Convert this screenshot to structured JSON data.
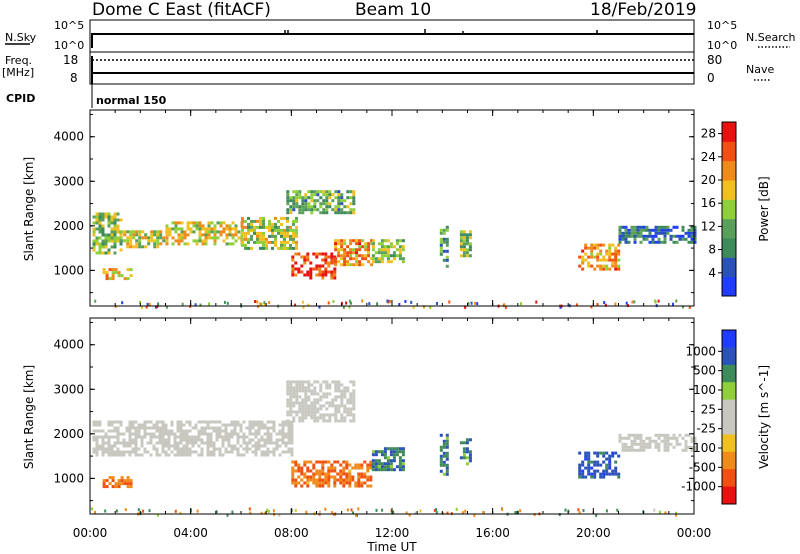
{
  "header": {
    "title": "Dome C East (fitACF)",
    "beam": "Beam 10",
    "date": "18/Feb/2019"
  },
  "status_panels": {
    "nsky_label": "N.Sky",
    "nsearch_label": "N.Search",
    "freq_label_1": "Freq.",
    "freq_label_2": "[MHz]",
    "nave_label": "Nave",
    "cpid_label": "CPID",
    "left_ticks_top": [
      "10^5",
      "10^0"
    ],
    "right_ticks_top": [
      "10^5",
      "10^0"
    ],
    "left_ticks_freq": [
      "18",
      "8"
    ],
    "right_ticks_nave": [
      "80",
      "0"
    ],
    "cpid_value": "normal 150"
  },
  "colors": {
    "power": [
      "#1f3cff",
      "#2a52b8",
      "#3f8a5a",
      "#5aa05a",
      "#8fcf3a",
      "#f0c020",
      "#f08a1a",
      "#f05010",
      "#e81010"
    ],
    "velocity": [
      "#e81010",
      "#f05010",
      "#f08a1a",
      "#f0c020",
      "#c8c8c0",
      "#c8c8c0",
      "#8fcf3a",
      "#3f8a5a",
      "#2a52b8",
      "#1f3cff"
    ]
  },
  "chart_data": [
    {
      "type": "heatmap",
      "name_panel": "power",
      "ylabel": "Slant Range [km]",
      "y_ticks": [
        "1000",
        "2000",
        "3000",
        "4000"
      ],
      "ylim": [
        200,
        4600
      ],
      "x_ticks": [
        "00:00",
        "04:00",
        "08:00",
        "12:00",
        "16:00",
        "20:00",
        "00:00"
      ],
      "xlim_hours": [
        0,
        24
      ],
      "colorbar_label": "Power [dB]",
      "colorbar_ticks": [
        "4",
        "8",
        "12",
        "16",
        "20",
        "24",
        "28"
      ],
      "colorbar_range": [
        0,
        30
      ],
      "regions": [
        {
          "t0": 0.1,
          "t1": 1.2,
          "r0": 1400,
          "r1": 2300,
          "level": 14
        },
        {
          "t0": 1.2,
          "t1": 3.0,
          "r0": 1500,
          "r1": 1900,
          "level": 16
        },
        {
          "t0": 3.0,
          "t1": 6.0,
          "r0": 1600,
          "r1": 2100,
          "level": 17
        },
        {
          "t0": 6.0,
          "t1": 8.2,
          "r0": 1500,
          "r1": 2200,
          "level": 15
        },
        {
          "t0": 7.8,
          "t1": 10.5,
          "r0": 2300,
          "r1": 2800,
          "level": 12
        },
        {
          "t0": 8.0,
          "t1": 9.7,
          "r0": 850,
          "r1": 1400,
          "level": 26
        },
        {
          "t0": 9.7,
          "t1": 11.2,
          "r0": 1100,
          "r1": 1700,
          "level": 21
        },
        {
          "t0": 11.2,
          "t1": 12.5,
          "r0": 1200,
          "r1": 1700,
          "level": 14
        },
        {
          "t0": 0.5,
          "t1": 1.6,
          "r0": 800,
          "r1": 1050,
          "level": 19
        },
        {
          "t0": 13.9,
          "t1": 14.2,
          "r0": 1100,
          "r1": 2000,
          "level": 11
        },
        {
          "t0": 14.7,
          "t1": 15.1,
          "r0": 1300,
          "r1": 1900,
          "level": 13
        },
        {
          "t0": 19.4,
          "t1": 21.0,
          "r0": 1000,
          "r1": 1600,
          "level": 21
        },
        {
          "t0": 21.0,
          "t1": 24.0,
          "r0": 1600,
          "r1": 2000,
          "level": 7
        }
      ]
    },
    {
      "type": "heatmap",
      "name_panel": "velocity",
      "ylabel": "Slant Range [km]",
      "y_ticks": [
        "1000",
        "2000",
        "3000",
        "4000"
      ],
      "ylim": [
        200,
        4600
      ],
      "x_ticks": [
        "00:00",
        "04:00",
        "08:00",
        "12:00",
        "16:00",
        "20:00",
        "00:00"
      ],
      "xlabel": "Time UT",
      "xlim_hours": [
        0,
        24
      ],
      "colorbar_label": "Velocity [m s^-1]",
      "colorbar_ticks": [
        "1000",
        "500",
        "100",
        "25",
        "-25",
        "-100",
        "-500",
        "-1000"
      ],
      "regions": [
        {
          "t0": 0.1,
          "t1": 8.0,
          "r0": 1500,
          "r1": 2300,
          "level": 0
        },
        {
          "t0": 7.8,
          "t1": 10.5,
          "r0": 2300,
          "r1": 3200,
          "level": 0
        },
        {
          "t0": 8.0,
          "t1": 11.2,
          "r0": 850,
          "r1": 1400,
          "level": -300
        },
        {
          "t0": 11.2,
          "t1": 12.5,
          "r0": 1200,
          "r1": 1700,
          "level": 300
        },
        {
          "t0": 0.5,
          "t1": 1.6,
          "r0": 800,
          "r1": 1050,
          "level": -300
        },
        {
          "t0": 13.9,
          "t1": 14.2,
          "r0": 1100,
          "r1": 2000,
          "level": 300
        },
        {
          "t0": 14.7,
          "t1": 15.1,
          "r0": 1300,
          "r1": 1900,
          "level": 300
        },
        {
          "t0": 19.4,
          "t1": 21.0,
          "r0": 1000,
          "r1": 1600,
          "level": 600
        },
        {
          "t0": 21.0,
          "t1": 24.0,
          "r0": 1600,
          "r1": 2000,
          "level": 0
        }
      ]
    }
  ]
}
